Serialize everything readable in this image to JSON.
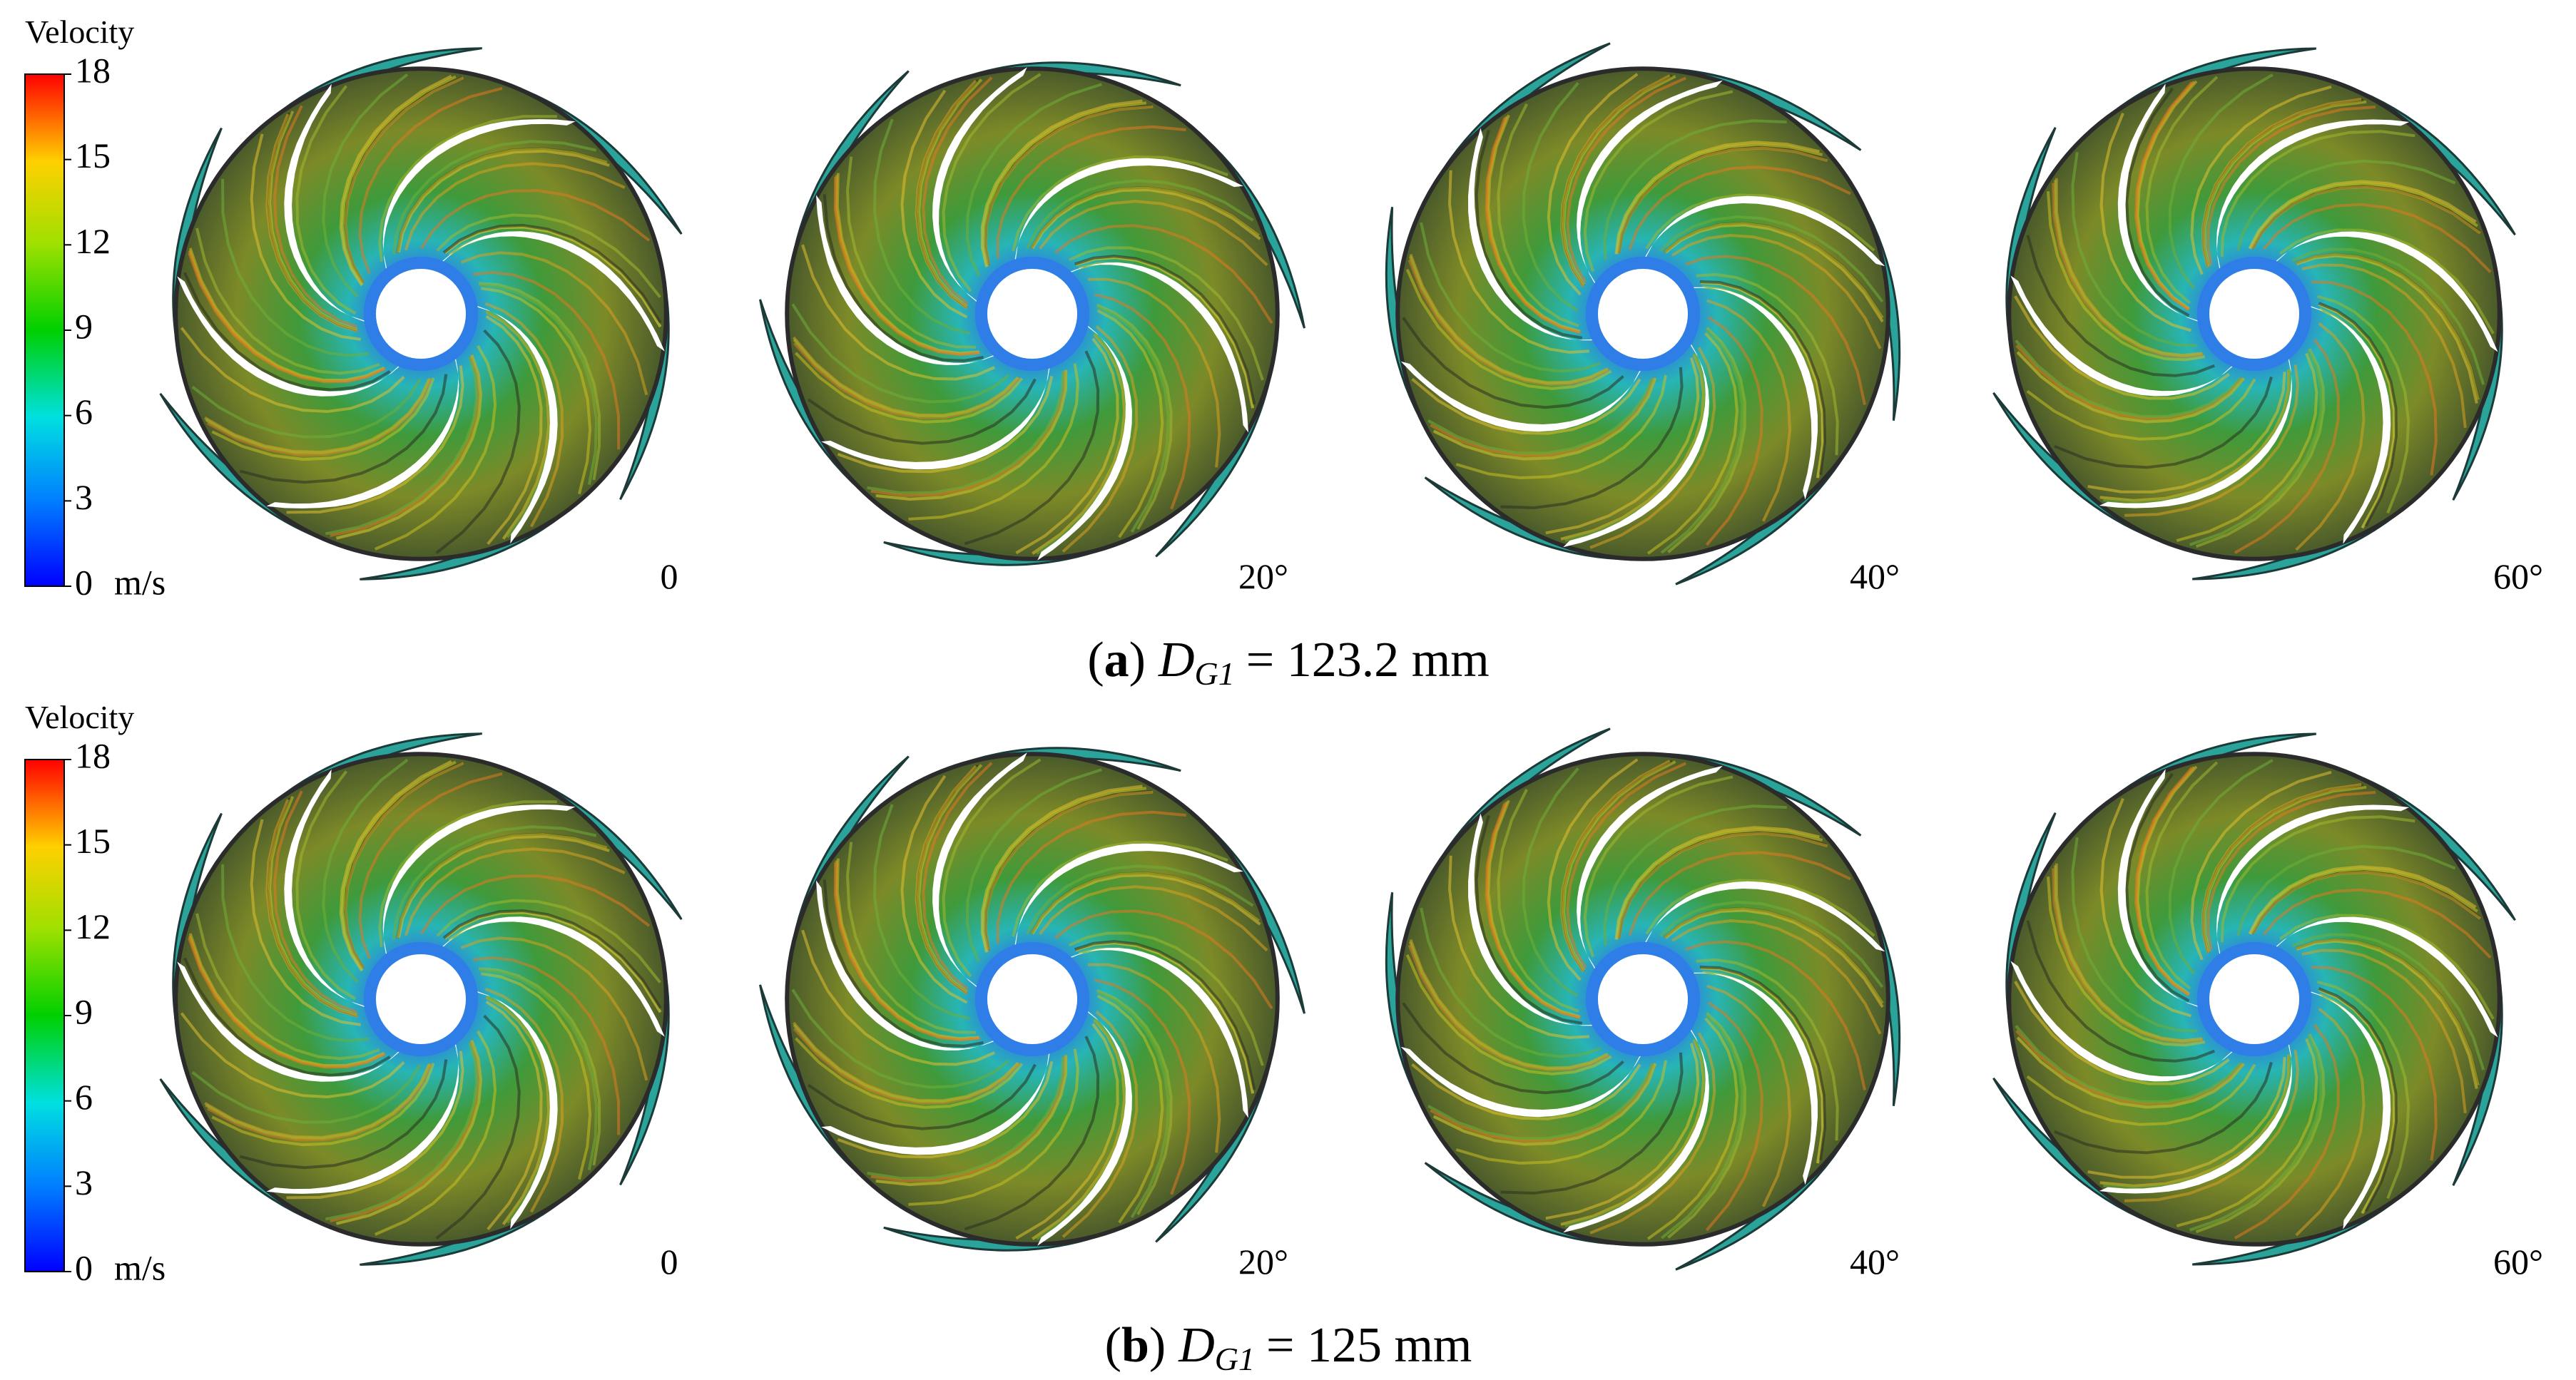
{
  "panels": [
    {
      "legend": {
        "title": "Velocity",
        "ticks": [
          0,
          3,
          6,
          9,
          12,
          15,
          18
        ],
        "unit": "m/s"
      },
      "angles": [
        "0",
        "20°",
        "40°",
        "60°"
      ],
      "caption": {
        "open": "(",
        "label": "a",
        "close": ")",
        "symbol": "D",
        "subscript": "G1",
        "rest": "= 123.2 mm"
      }
    },
    {
      "legend": {
        "title": "Velocity",
        "ticks": [
          0,
          3,
          6,
          9,
          12,
          15,
          18
        ],
        "unit": "m/s"
      },
      "angles": [
        "0",
        "20°",
        "40°",
        "60°"
      ],
      "caption": {
        "open": "(",
        "label": "b",
        "close": ")",
        "symbol": "D",
        "subscript": "G1",
        "rest": "= 125 mm"
      }
    }
  ]
}
